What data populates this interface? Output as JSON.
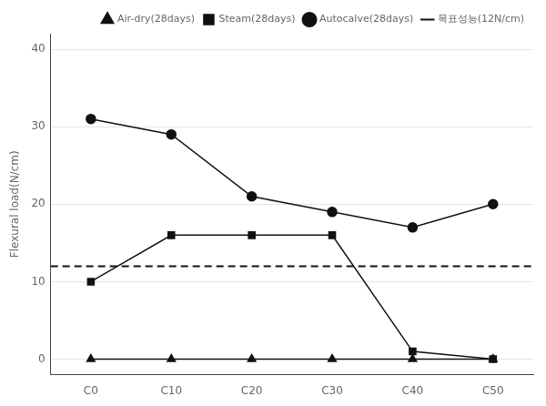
{
  "chart_data": {
    "type": "line",
    "y_label": "Flexural load(N/cm)",
    "categories": [
      "C0",
      "C10",
      "C20",
      "C30",
      "C40",
      "C50"
    ],
    "series": [
      {
        "name": "Air-dry(28days)",
        "color": "#111111",
        "marker": "triangle",
        "values": [
          0,
          0,
          0,
          0,
          0,
          0
        ]
      },
      {
        "name": "Steam(28days)",
        "color": "#111111",
        "marker": "square",
        "values": [
          10,
          16,
          16,
          16,
          1,
          0
        ]
      },
      {
        "name": "Autocalve(28days)",
        "color": "#111111",
        "marker": "circle",
        "values": [
          31,
          29,
          21,
          19,
          17,
          20
        ]
      }
    ],
    "target_line": {
      "name": "목표성능(12N/cm)",
      "value": 12,
      "color": "#111111",
      "line_style": "dashed"
    },
    "ylim": [
      -2,
      42
    ],
    "yticks": [
      0,
      10,
      20,
      30,
      40
    ],
    "grid": true,
    "legend": "upper right"
  }
}
